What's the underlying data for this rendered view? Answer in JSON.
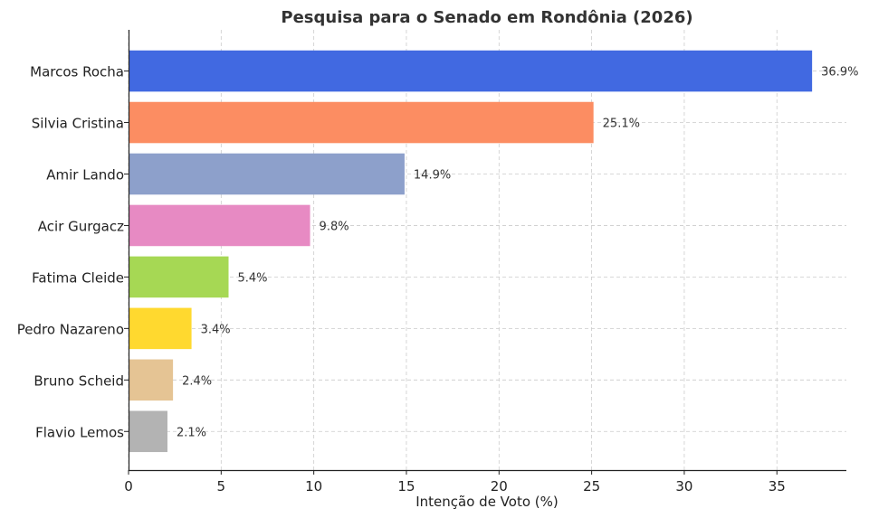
{
  "chart_data": {
    "type": "bar",
    "orientation": "horizontal",
    "title": "Pesquisa para o Senado em Rondônia (2026)",
    "xlabel": "Intenção de Voto (%)",
    "ylabel": "",
    "xlim": [
      0,
      38.75
    ],
    "xticks": [
      0,
      5,
      10,
      15,
      20,
      25,
      30,
      35
    ],
    "grid": true,
    "categories": [
      "Marcos Rocha",
      "Silvia Cristina",
      "Amir Lando",
      "Acir Gurgacz",
      "Fatima Cleide",
      "Pedro Nazareno",
      "Bruno Scheid",
      "Flavio Lemos"
    ],
    "values": [
      36.9,
      25.1,
      14.9,
      9.8,
      5.4,
      3.4,
      2.4,
      2.1
    ],
    "value_labels": [
      "36.9%",
      "25.1%",
      "14.9%",
      "9.8%",
      "5.4%",
      "3.4%",
      "2.4%",
      "2.1%"
    ],
    "colors": [
      "#4169E1",
      "#FC8D62",
      "#8DA0CB",
      "#E78AC3",
      "#A6D854",
      "#FFD92F",
      "#E5C494",
      "#B3B3B3"
    ]
  }
}
